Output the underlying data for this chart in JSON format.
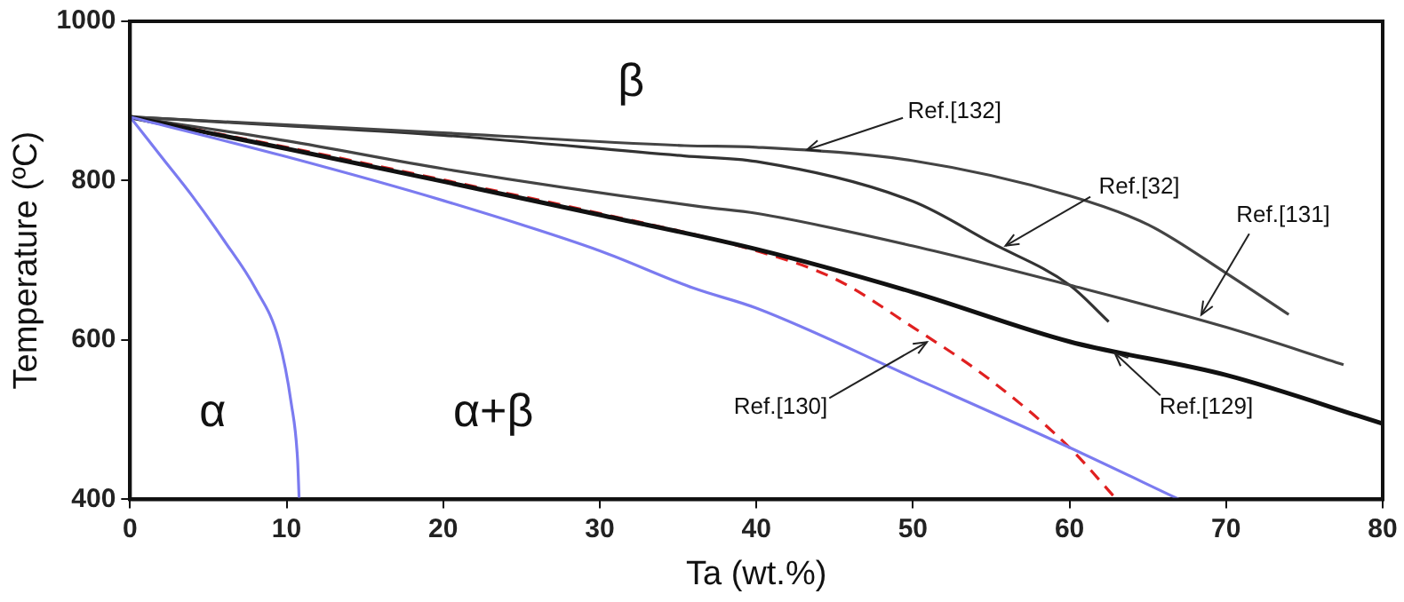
{
  "chart_data": {
    "type": "line",
    "xlabel": "Ta (wt.%)",
    "ylabel": "Temperature (ºC)",
    "xlim": [
      0,
      80
    ],
    "xticks": [
      0,
      10,
      20,
      30,
      40,
      50,
      60,
      70,
      80
    ],
    "ylim": [
      400,
      1000
    ],
    "yticks": [
      400,
      600,
      800,
      1000
    ],
    "grid": false,
    "legend": false,
    "marker": "none",
    "series": [
      {
        "color": "#7b7bf0",
        "x": [
          0,
          2,
          4,
          6,
          8,
          9.5,
          10.3,
          10.7,
          10.8
        ],
        "values": [
          880,
          830,
          780,
          725,
          665,
          600,
          520,
          450,
          400
        ]
      },
      {
        "color": "#7b7bf0",
        "x": [
          0,
          10,
          20,
          30,
          36,
          40,
          50,
          60,
          67
        ],
        "values": [
          880,
          830,
          775,
          712,
          665,
          640,
          553,
          465,
          400
        ]
      },
      {
        "color": "#111111",
        "x": [
          0,
          10,
          20,
          30,
          40,
          50,
          60,
          70,
          80
        ],
        "values": [
          880,
          840,
          799,
          757,
          714,
          660,
          598,
          556,
          495
        ]
      },
      {
        "color": "#e02020",
        "line_style": "dashed",
        "x": [
          0,
          10,
          20,
          30,
          40,
          45,
          50,
          55,
          60,
          63
        ],
        "values": [
          880,
          842,
          801,
          759,
          712,
          677,
          616,
          549,
          465,
          400
        ]
      },
      {
        "color": "#444444",
        "x": [
          0,
          10,
          20,
          36.6,
          40,
          50,
          60,
          70,
          77.5
        ],
        "values": [
          880,
          850,
          815,
          767,
          759,
          718,
          669,
          616,
          569
        ]
      },
      {
        "color": "#444444",
        "x": [
          0,
          10,
          20,
          35.4,
          40,
          50,
          60,
          65,
          70,
          74
        ],
        "values": [
          880,
          870,
          860,
          844,
          842,
          825,
          781,
          745,
          684,
          632
        ]
      },
      {
        "color": "#333333",
        "x": [
          0,
          10,
          20,
          35.4,
          40,
          50,
          55,
          60,
          62.5
        ],
        "values": [
          880,
          869,
          857,
          831,
          824,
          774,
          722,
          669,
          623
        ]
      }
    ],
    "annotations": [
      "β",
      "α",
      "α+β",
      {
        "text": "Ref.[132]",
        "x": 42.9,
        "y": 837
      },
      {
        "text": "Ref.[32]",
        "x": 55.6,
        "y": 715.6
      },
      {
        "text": "Ref.[131]",
        "x": 68.2,
        "y": 626.5
      },
      {
        "text": "Ref.[129]",
        "x": 62.6,
        "y": 587
      },
      {
        "text": "Ref.[130]",
        "x": 51.2,
        "y": 600
      }
    ]
  }
}
